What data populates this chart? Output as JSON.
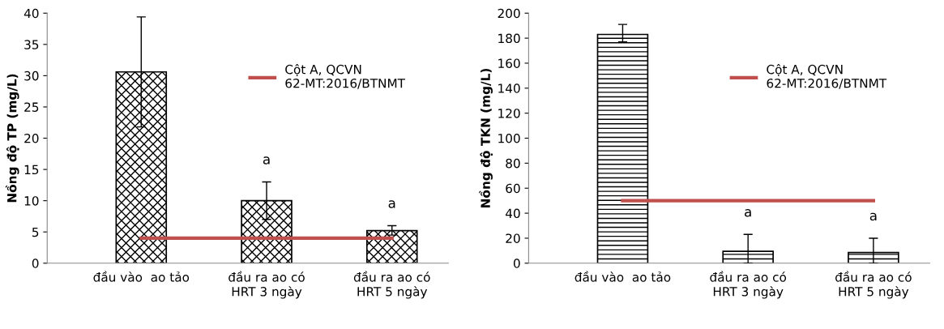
{
  "chart_data": [
    {
      "type": "bar",
      "ylabel": "Nồng độ TP (mg/L)",
      "categories": [
        "đầu vào  ao tảo",
        "đầu ra ao có\nHRT 3 ngày",
        "đầu ra ao có\nHRT 5 ngày"
      ],
      "series": [
        {
          "color": "#000000",
          "values": [
            30.6,
            10.0,
            5.2
          ],
          "errors": [
            [
              21.8,
              39.4
            ],
            [
              7.0,
              13.0
            ],
            [
              4.5,
              6.0
            ]
          ]
        },
        {
          "type": "line",
          "name": "Cột A, QCVN\n62-MT:2016/BTNMT",
          "color": "#c0504d",
          "values": [
            4,
            4,
            4
          ]
        }
      ],
      "ylim": [
        0,
        40
      ],
      "yticks": [
        0,
        5,
        10,
        15,
        20,
        25,
        30,
        35,
        40
      ],
      "annotations": [
        "a",
        "a"
      ],
      "legend": "top right",
      "grid": false
    },
    {
      "type": "bar",
      "ylabel": "Nồng độ TKN (mg/L)",
      "categories": [
        "đầu vào  ao tảo",
        "đầu ra ao có\nHRT 3 ngày",
        "đầu ra ao có\nHRT 5 ngày"
      ],
      "series": [
        {
          "color": "#000000",
          "values": [
            183,
            9.5,
            8.5
          ],
          "errors": [
            [
              177,
              191
            ],
            [
              0,
              23
            ],
            [
              0,
              20
            ]
          ]
        },
        {
          "type": "line",
          "name": "Cột A, QCVN\n62-MT:2016/BTNMT",
          "color": "#c0504d",
          "values": [
            50,
            50,
            50
          ]
        }
      ],
      "ylim": [
        0,
        200
      ],
      "yticks": [
        0,
        20,
        40,
        60,
        80,
        100,
        120,
        140,
        160,
        180,
        200
      ],
      "annotations": [
        "a",
        "a"
      ],
      "legend": "top right",
      "grid": false
    }
  ]
}
